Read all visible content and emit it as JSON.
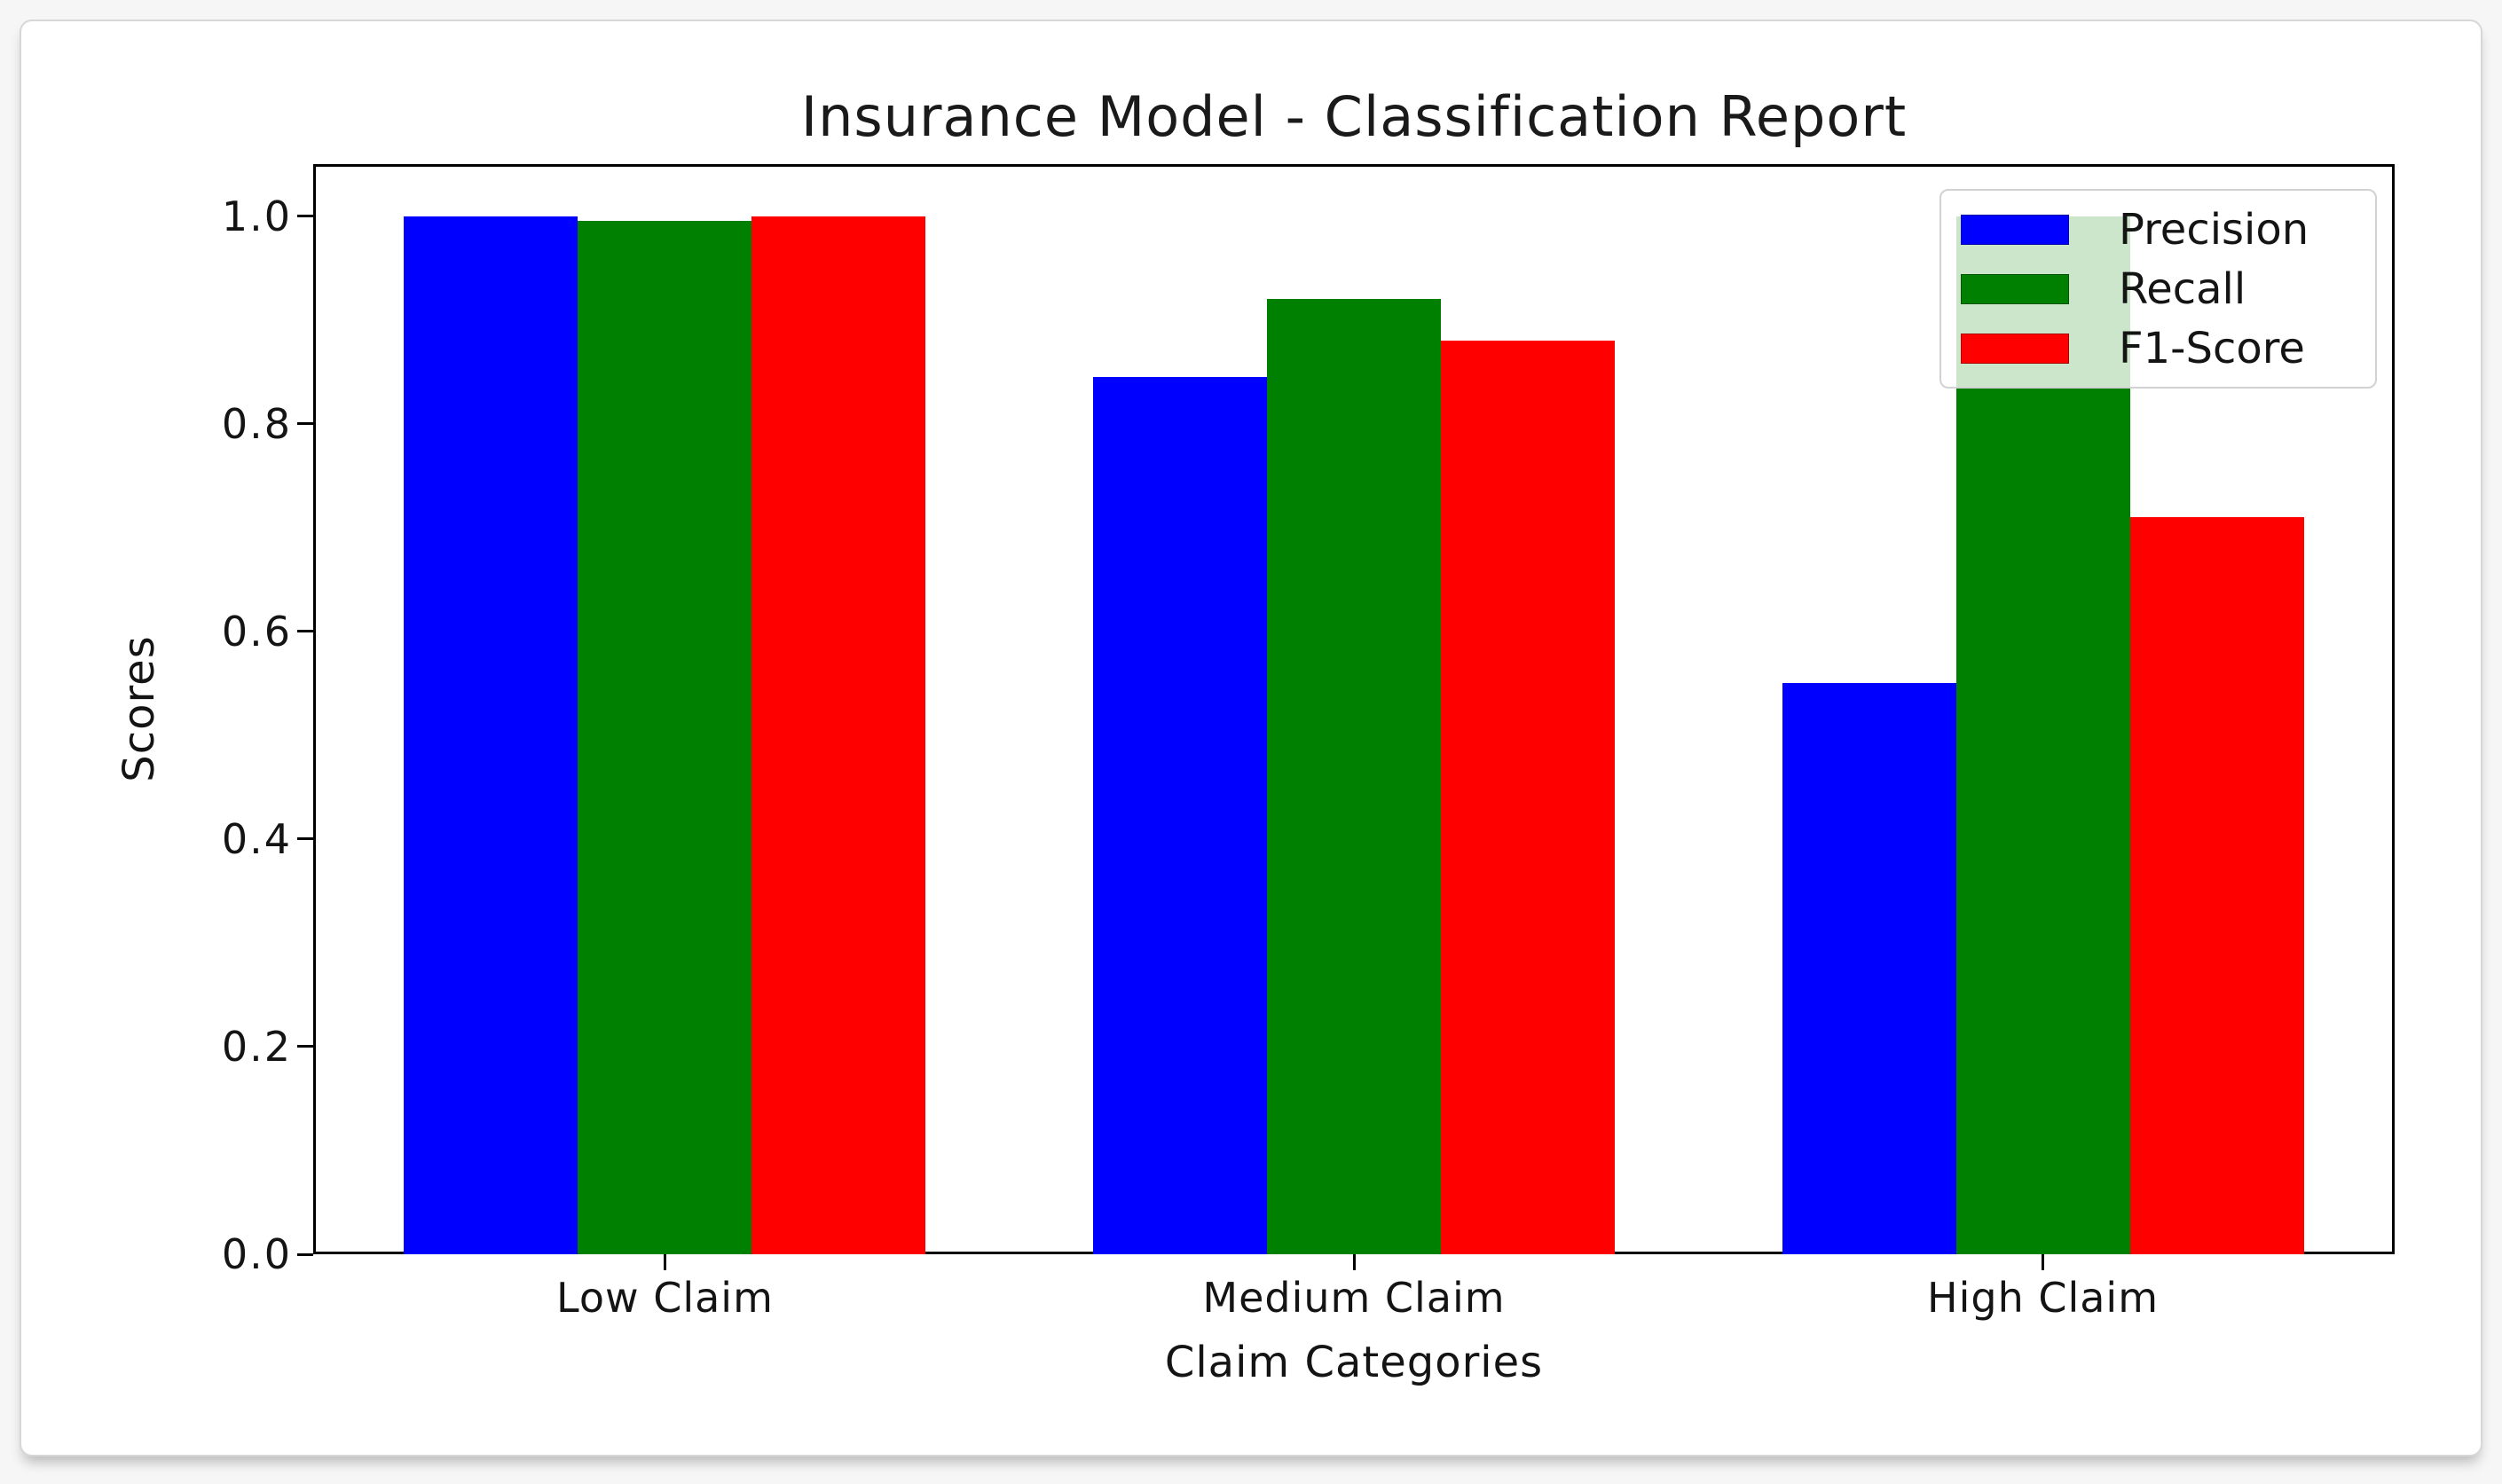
{
  "figure": {
    "title": "Insurance Model - Classification Report",
    "xlabel": "Claim Categories",
    "ylabel": "Scores"
  },
  "chart_data": {
    "type": "bar",
    "title": "Insurance Model - Classification Report",
    "xlabel": "Claim Categories",
    "ylabel": "Scores",
    "categories": [
      "Low Claim",
      "Medium Claim",
      "High Claim"
    ],
    "series": [
      {
        "name": "Precision",
        "color": "#0000ff",
        "values": [
          1.0,
          0.845,
          0.55
        ]
      },
      {
        "name": "Recall",
        "color": "#008000",
        "values": [
          0.995,
          0.92,
          1.0
        ]
      },
      {
        "name": "F1-Score",
        "color": "#ff0000",
        "values": [
          1.0,
          0.88,
          0.71
        ]
      }
    ],
    "yticks": [
      {
        "label": "1.0",
        "value": 1.0
      },
      {
        "label": "0.8",
        "value": 0.8
      },
      {
        "label": "0.6",
        "value": 0.6
      },
      {
        "label": "0.4",
        "value": 0.4
      },
      {
        "label": "0.2",
        "value": 0.2
      },
      {
        "label": "0.0",
        "value": 0.0
      }
    ],
    "ylim": [
      0,
      1.05
    ],
    "grid": false,
    "legend_position": "upper right"
  }
}
